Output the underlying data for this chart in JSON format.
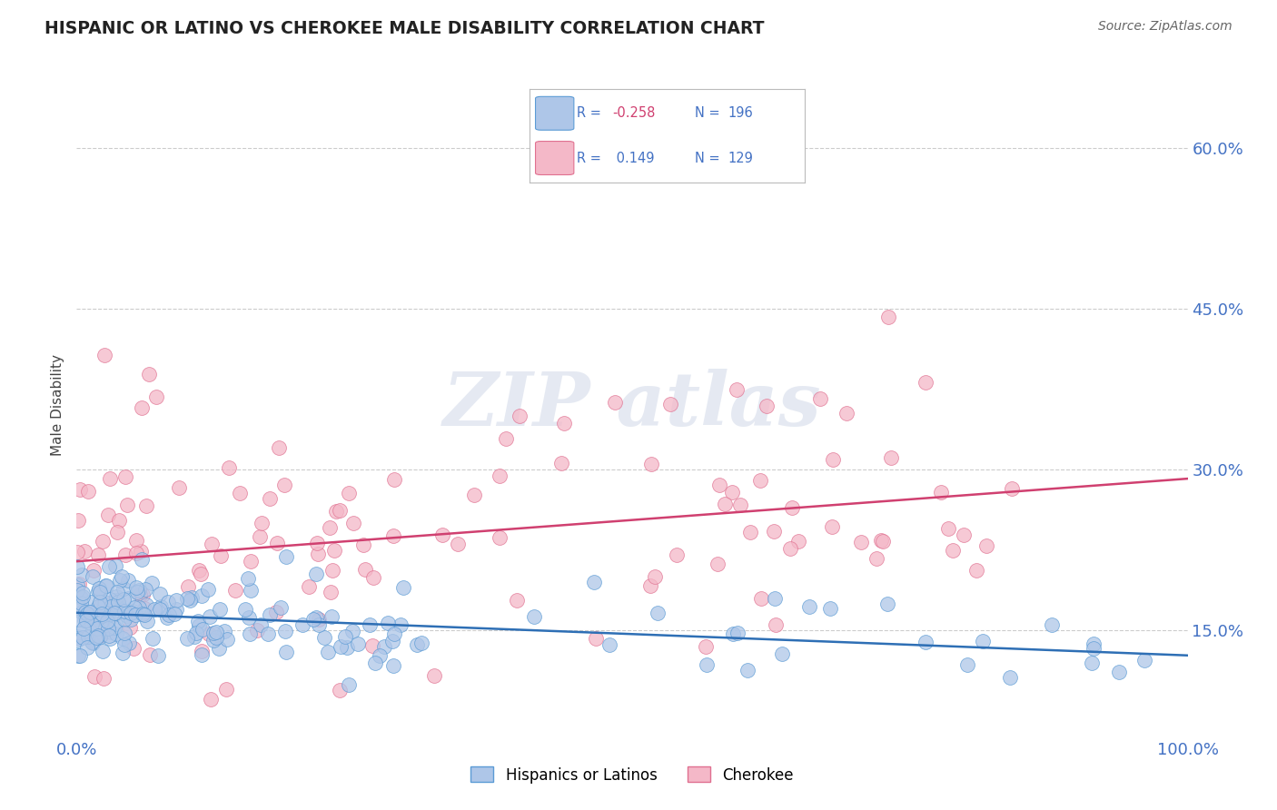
{
  "title": "HISPANIC OR LATINO VS CHEROKEE MALE DISABILITY CORRELATION CHART",
  "source": "Source: ZipAtlas.com",
  "ylabel": "Male Disability",
  "xlim": [
    0,
    1.0
  ],
  "ylim": [
    0.05,
    0.67
  ],
  "yticks": [
    0.15,
    0.3,
    0.45,
    0.6
  ],
  "ytick_labels": [
    "15.0%",
    "30.0%",
    "45.0%",
    "60.0%"
  ],
  "blue_R": -0.258,
  "blue_N": 196,
  "pink_R": 0.149,
  "pink_N": 129,
  "blue_color": "#aec6e8",
  "blue_edge_color": "#5b9bd5",
  "blue_line_color": "#2e6fb5",
  "pink_color": "#f4b8c8",
  "pink_edge_color": "#e07090",
  "pink_line_color": "#d04070",
  "legend_label_blue": "Hispanics or Latinos",
  "legend_label_pink": "Cherokee",
  "background_color": "#ffffff",
  "grid_color": "#cccccc",
  "title_color": "#222222",
  "axis_label_color": "#4472c4",
  "blue_trend_start_y": 0.168,
  "blue_trend_end_y": 0.138,
  "pink_trend_start_y": 0.225,
  "pink_trend_end_y": 0.275
}
